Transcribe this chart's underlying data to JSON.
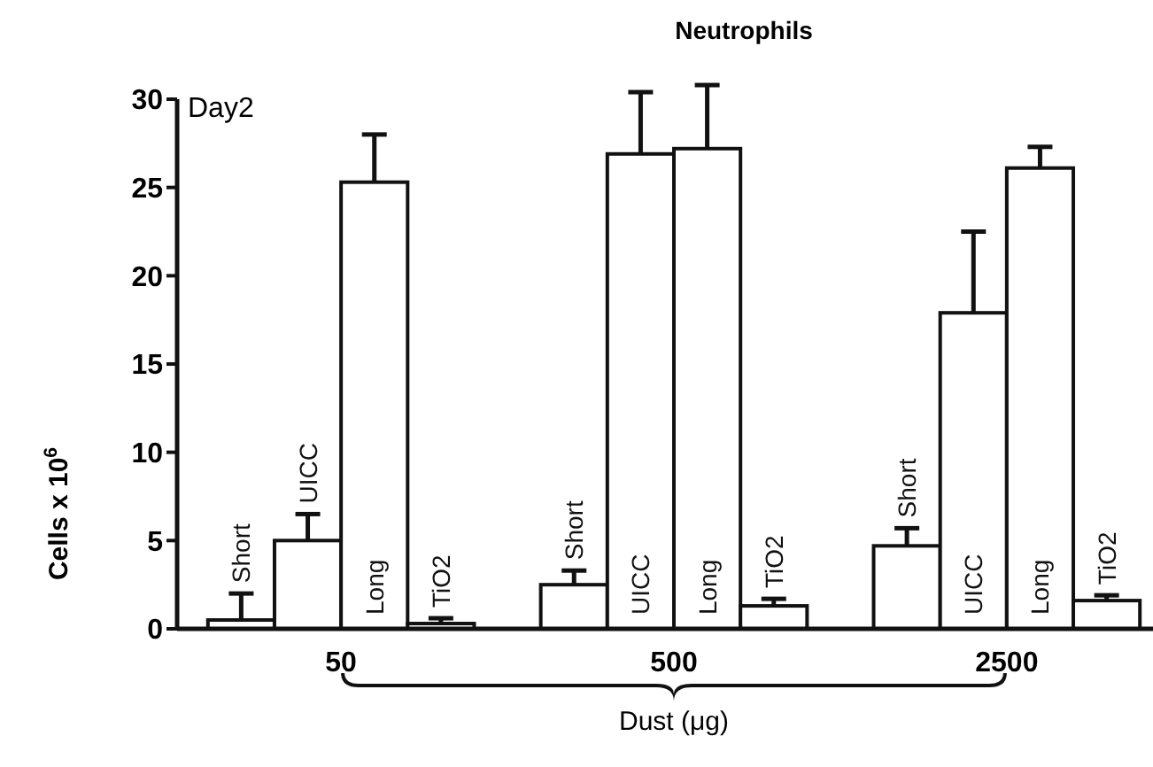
{
  "chart_data": {
    "type": "bar",
    "title": "Neutrophils",
    "xlabel": "Dust (μg)",
    "ylabel": "Cells x 10$^{6}$",
    "annotations": [
      "Day2"
    ],
    "categories": [
      "50",
      "500",
      "2500"
    ],
    "series": [
      {
        "name": "Short",
        "color": "#ffffff",
        "values": [
          0.5,
          2.5,
          4.7
        ],
        "errors": [
          [
            0.5,
            2.0
          ],
          [
            2.5,
            3.3
          ],
          [
            4.7,
            5.7
          ]
        ]
      },
      {
        "name": "UICC",
        "color": "#ffffff",
        "values": [
          5.0,
          26.9,
          17.9
        ],
        "errors": [
          [
            5.0,
            6.5
          ],
          [
            26.9,
            30.4
          ],
          [
            17.9,
            22.5
          ]
        ]
      },
      {
        "name": "Long",
        "color": "#ffffff",
        "values": [
          25.3,
          27.2,
          26.1
        ],
        "errors": [
          [
            25.3,
            28.0
          ],
          [
            27.2,
            30.8
          ],
          [
            26.1,
            27.3
          ]
        ]
      },
      {
        "name": "TiO2",
        "color": "#ffffff",
        "values": [
          0.3,
          1.3,
          1.6
        ],
        "errors": [
          [
            0.3,
            0.6
          ],
          [
            1.3,
            1.7
          ],
          [
            1.6,
            1.9
          ]
        ]
      }
    ],
    "ylim": [
      0,
      30
    ],
    "yticks": [
      0,
      5,
      10,
      15,
      20,
      25,
      30
    ],
    "grid": false
  }
}
